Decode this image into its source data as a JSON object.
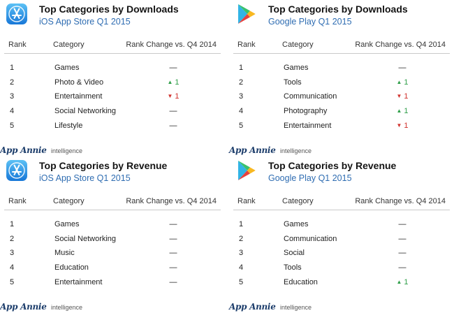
{
  "colors": {
    "up": "#2e9e48",
    "down": "#d0312d",
    "subtitle": "#2f6db2"
  },
  "panels": [
    {
      "store_icon": "app-store-icon",
      "title": "Top Categories by Downloads",
      "subtitle": "iOS App Store Q1 2015",
      "headers": {
        "rank": "Rank",
        "category": "Category",
        "change": "Rank Change vs. Q4 2014"
      },
      "rows": [
        {
          "rank": "1",
          "category": "Games",
          "change": "—",
          "direction": "none"
        },
        {
          "rank": "2",
          "category": "Photo & Video",
          "change": "1",
          "direction": "up"
        },
        {
          "rank": "3",
          "category": "Entertainment",
          "change": "1",
          "direction": "down"
        },
        {
          "rank": "4",
          "category": "Social Networking",
          "change": "—",
          "direction": "none"
        },
        {
          "rank": "5",
          "category": "Lifestyle",
          "change": "—",
          "direction": "none"
        }
      ],
      "brand": {
        "name": "App Annie",
        "suffix": "intelligence"
      }
    },
    {
      "store_icon": "google-play-icon",
      "title": "Top Categories by Downloads",
      "subtitle": "Google Play Q1 2015",
      "headers": {
        "rank": "Rank",
        "category": "Category",
        "change": "Rank Change vs. Q4 2014"
      },
      "rows": [
        {
          "rank": "1",
          "category": "Games",
          "change": "—",
          "direction": "none"
        },
        {
          "rank": "2",
          "category": "Tools",
          "change": "1",
          "direction": "up"
        },
        {
          "rank": "3",
          "category": "Communication",
          "change": "1",
          "direction": "down"
        },
        {
          "rank": "4",
          "category": "Photography",
          "change": "1",
          "direction": "up"
        },
        {
          "rank": "5",
          "category": "Entertainment",
          "change": "1",
          "direction": "down"
        }
      ],
      "brand": {
        "name": "App Annie",
        "suffix": "intelligence"
      }
    },
    {
      "store_icon": "app-store-icon",
      "title": "Top Categories by Revenue",
      "subtitle": "iOS App Store Q1 2015",
      "headers": {
        "rank": "Rank",
        "category": "Category",
        "change": "Rank Change vs. Q4 2014"
      },
      "rows": [
        {
          "rank": "1",
          "category": "Games",
          "change": "—",
          "direction": "none"
        },
        {
          "rank": "2",
          "category": "Social Networking",
          "change": "—",
          "direction": "none"
        },
        {
          "rank": "3",
          "category": "Music",
          "change": "—",
          "direction": "none"
        },
        {
          "rank": "4",
          "category": "Education",
          "change": "—",
          "direction": "none"
        },
        {
          "rank": "5",
          "category": "Entertainment",
          "change": "—",
          "direction": "none"
        }
      ],
      "brand": {
        "name": "App Annie",
        "suffix": "intelligence"
      }
    },
    {
      "store_icon": "google-play-icon",
      "title": "Top Categories by Revenue",
      "subtitle": "Google Play Q1 2015",
      "headers": {
        "rank": "Rank",
        "category": "Category",
        "change": "Rank Change vs. Q4 2014"
      },
      "rows": [
        {
          "rank": "1",
          "category": "Games",
          "change": "—",
          "direction": "none"
        },
        {
          "rank": "2",
          "category": "Communication",
          "change": "—",
          "direction": "none"
        },
        {
          "rank": "3",
          "category": "Social",
          "change": "—",
          "direction": "none"
        },
        {
          "rank": "4",
          "category": "Tools",
          "change": "—",
          "direction": "none"
        },
        {
          "rank": "5",
          "category": "Education",
          "change": "1",
          "direction": "up"
        }
      ],
      "brand": {
        "name": "App Annie",
        "suffix": "intelligence"
      }
    }
  ]
}
